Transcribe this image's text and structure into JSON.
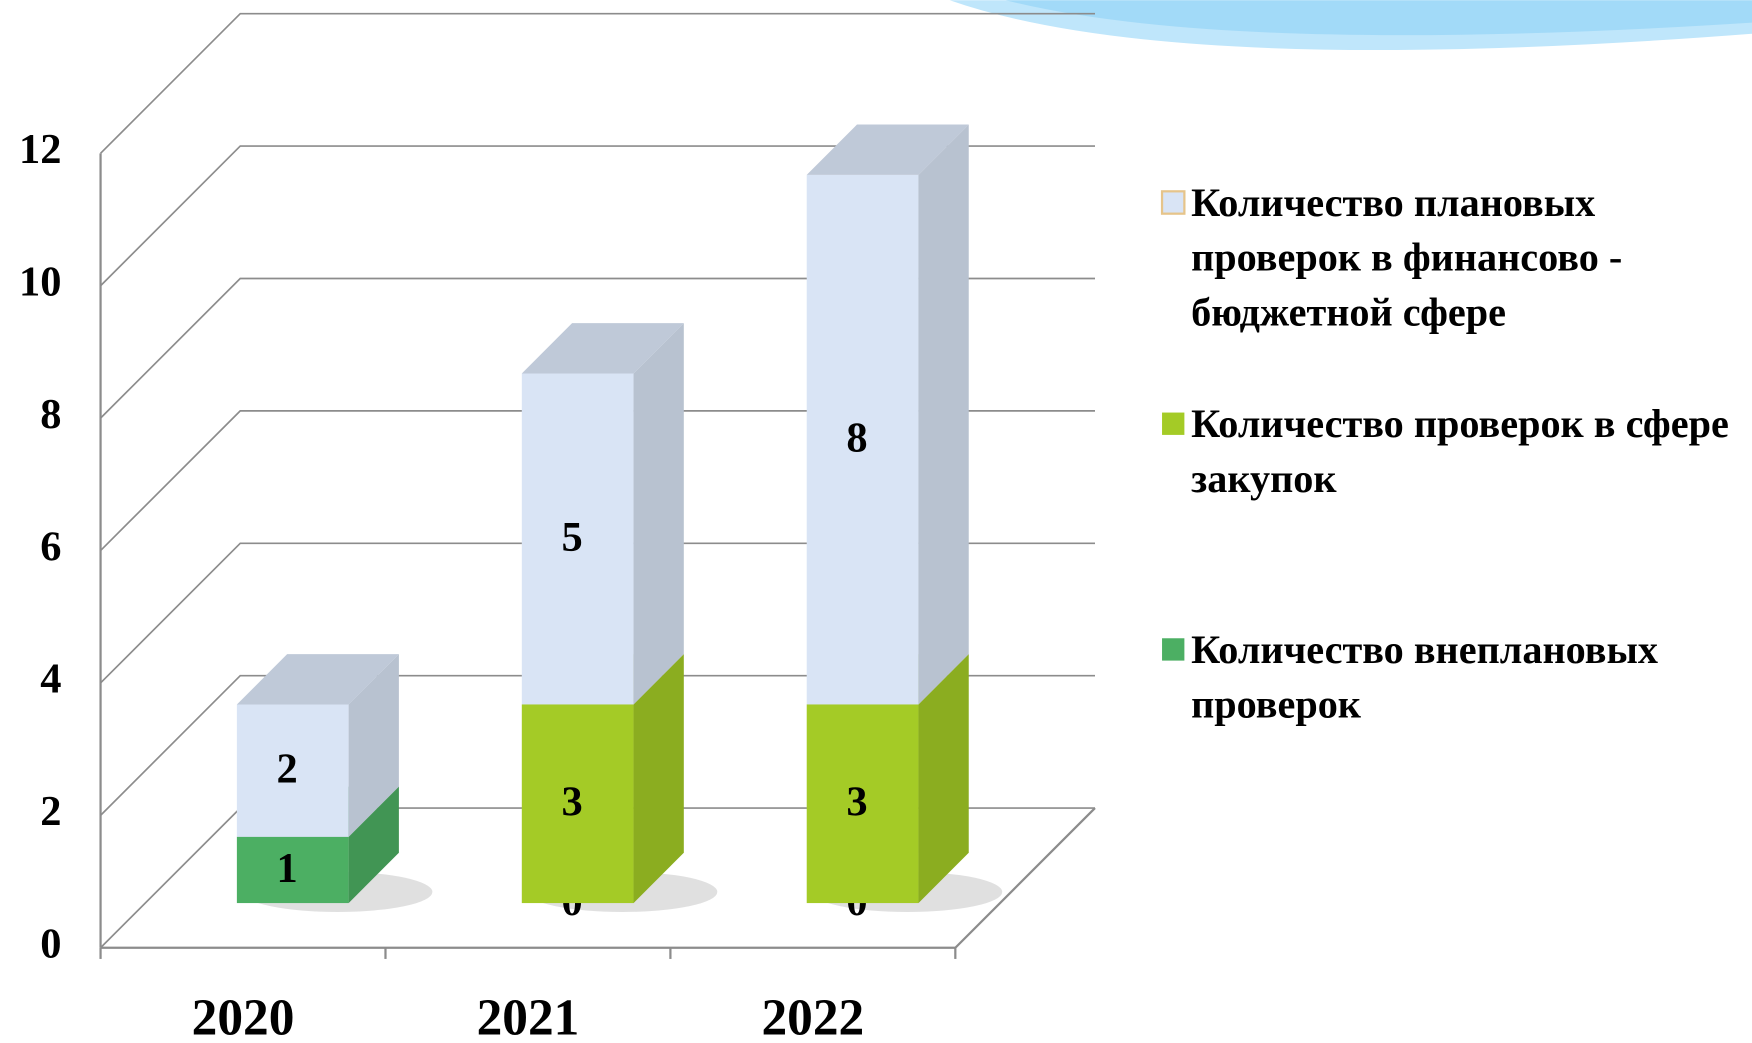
{
  "chart_data": {
    "type": "bar3d_stacked",
    "categories": [
      "2020",
      "2021",
      "2022"
    ],
    "series": [
      {
        "name": "Количество плановых проверок в финансово - бюджетной сфере",
        "color": "#d9e4f5",
        "values": [
          2,
          5,
          8
        ]
      },
      {
        "name": "Количество проверок в сфере закупок",
        "color": "#a4cb26",
        "values": [
          0,
          3,
          3
        ]
      },
      {
        "name": "Количество внеплановых проверок",
        "color": "#4caf63",
        "values": [
          1,
          0,
          0
        ]
      }
    ],
    "ylim": [
      0,
      12
    ],
    "yticks": [
      0,
      2,
      4,
      6,
      8,
      10,
      12
    ],
    "grid": true,
    "legend": "right"
  }
}
